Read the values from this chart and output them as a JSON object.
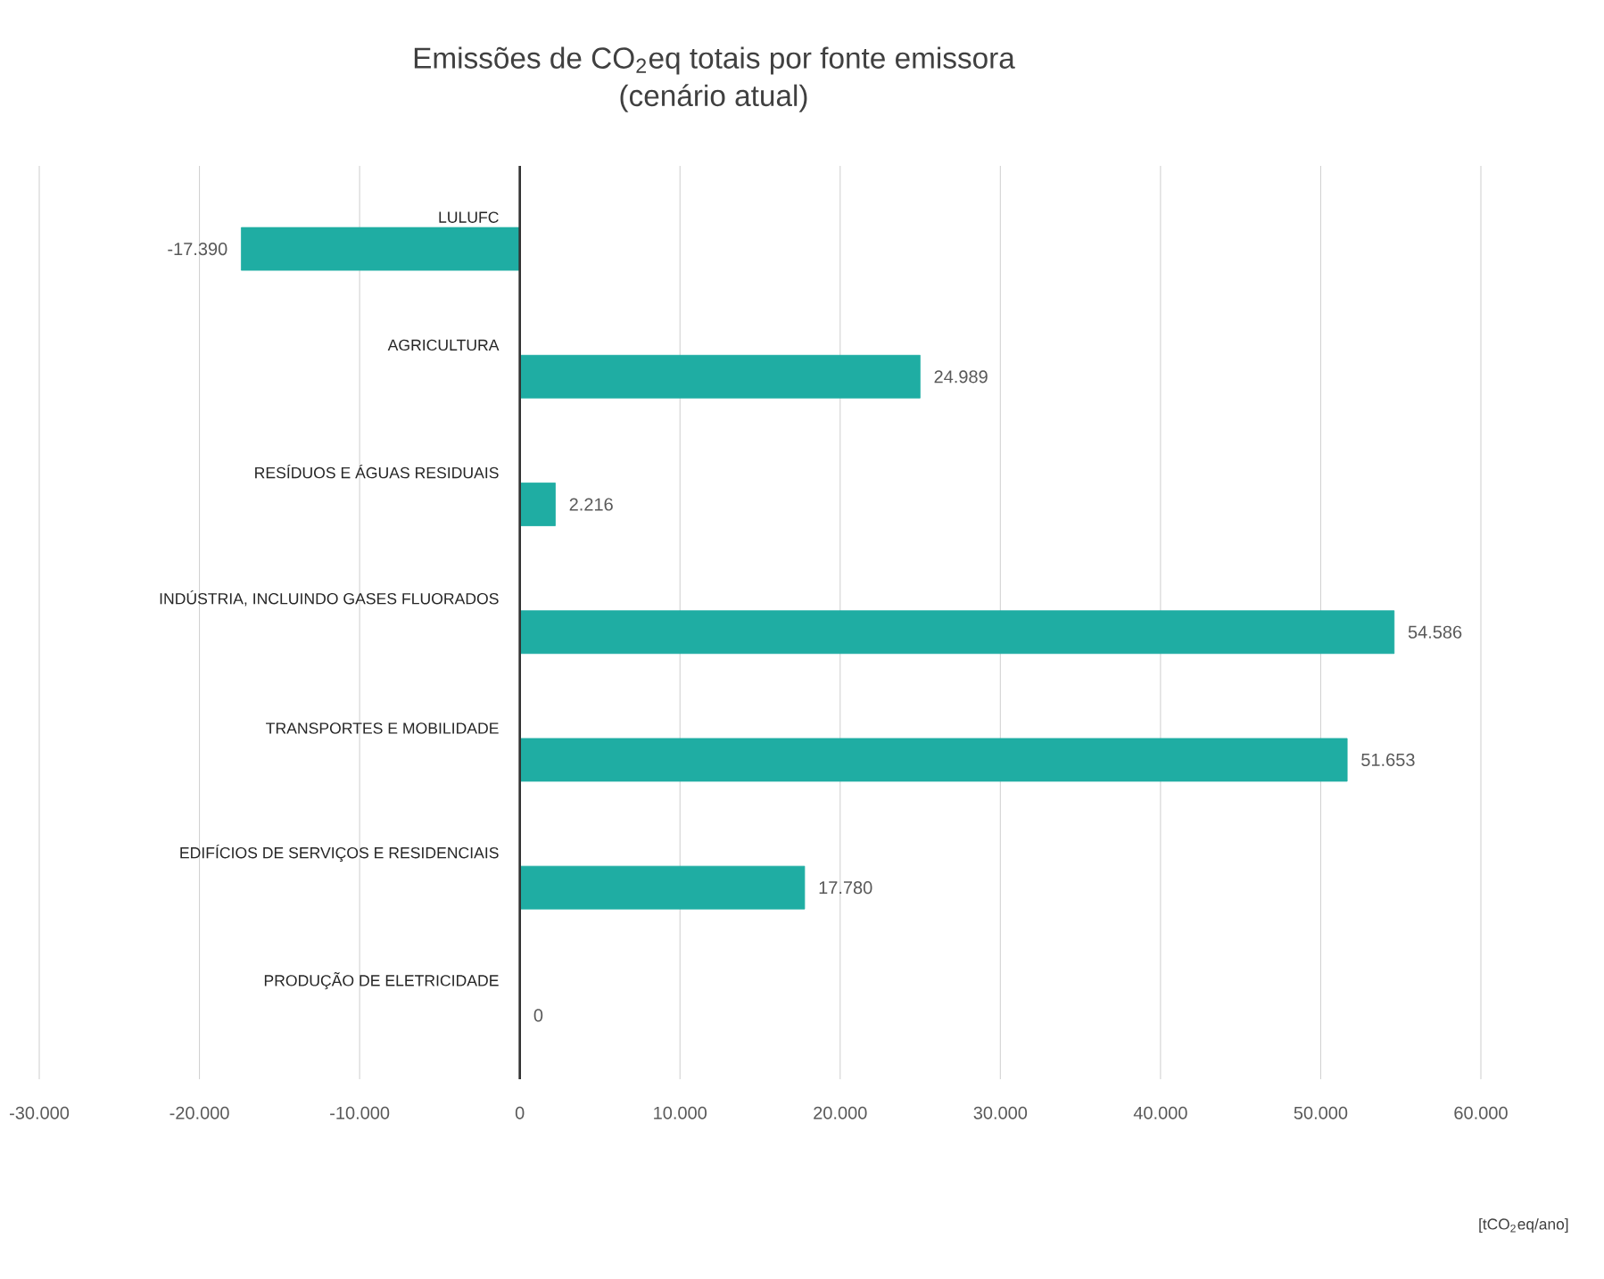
{
  "chart_data": {
    "type": "bar",
    "orientation": "horizontal",
    "title": "Emissões de CO$_{2}$eq totais por fonte emissora",
    "subtitle": "(cenário atual)",
    "categories": [
      "LULUFC",
      "AGRICULTURA",
      "RESÍDUOS E ÁGUAS RESIDUAIS",
      "INDÚSTRIA, INCLUINDO GASES FLUORADOS",
      "TRANSPORTES E MOBILIDADE",
      "EDIFÍCIOS DE SERVIÇOS E RESIDENCIAIS",
      "PRODUÇÃO DE ELETRICIDADE"
    ],
    "values": [
      -17390,
      24989,
      2216,
      54586,
      51653,
      17780,
      0
    ],
    "value_labels": [
      "-17.390",
      "24.989",
      "2.216",
      "54.586",
      "51.653",
      "17.780",
      "0"
    ],
    "color": "#1fada3",
    "xlim": [
      -30000,
      60000
    ],
    "xticks": [
      {
        "value": -30000,
        "label": "-30.000"
      },
      {
        "value": -20000,
        "label": "-20.000"
      },
      {
        "value": -10000,
        "label": "-10.000"
      },
      {
        "value": 0,
        "label": "0"
      },
      {
        "value": 10000,
        "label": "10.000"
      },
      {
        "value": 20000,
        "label": "20.000"
      },
      {
        "value": 30000,
        "label": "30.000"
      },
      {
        "value": 40000,
        "label": "40.000"
      },
      {
        "value": 50000,
        "label": "50.000"
      },
      {
        "value": 60000,
        "label": "60.000"
      }
    ],
    "grid": "x",
    "annotations": [
      "[tCO$_{2}$eq/ano]"
    ]
  }
}
